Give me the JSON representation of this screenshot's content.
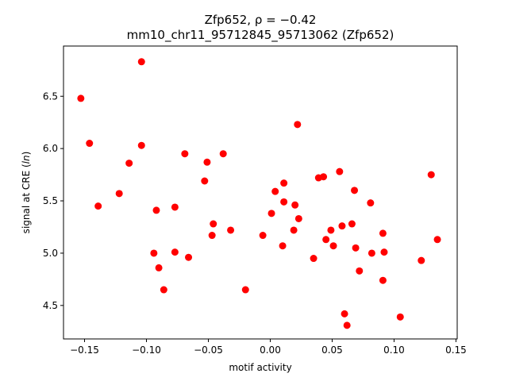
{
  "chart_data": {
    "type": "scatter",
    "title_line1": "Zfp652, ρ = −0.42",
    "title_line2": "mm10_chr11_95712845_95713062 (Zfp652)",
    "xlabel": "motif activity",
    "ylabel": "signal at CRE (ln)",
    "xlim": [
      -0.167,
      0.151
    ],
    "ylim": [
      4.18,
      6.98
    ],
    "xticks": [
      -0.15,
      -0.1,
      -0.05,
      0.0,
      0.05,
      0.1,
      0.15
    ],
    "xtick_labels": [
      "−0.15",
      "−0.10",
      "−0.05",
      "0.00",
      "0.05",
      "0.10",
      "0.15"
    ],
    "yticks": [
      4.5,
      5.0,
      5.5,
      6.0,
      6.5
    ],
    "ytick_labels": [
      "4.5",
      "5.0",
      "5.5",
      "6.0",
      "6.5"
    ],
    "marker_color": "#ff0000",
    "grid": false,
    "points": [
      {
        "x": -0.153,
        "y": 6.48
      },
      {
        "x": -0.146,
        "y": 6.05
      },
      {
        "x": -0.139,
        "y": 5.45
      },
      {
        "x": -0.122,
        "y": 5.57
      },
      {
        "x": -0.114,
        "y": 5.86
      },
      {
        "x": -0.104,
        "y": 6.83
      },
      {
        "x": -0.104,
        "y": 6.03
      },
      {
        "x": -0.094,
        "y": 5.0
      },
      {
        "x": -0.092,
        "y": 5.41
      },
      {
        "x": -0.09,
        "y": 4.86
      },
      {
        "x": -0.086,
        "y": 4.65
      },
      {
        "x": -0.077,
        "y": 5.44
      },
      {
        "x": -0.077,
        "y": 5.01
      },
      {
        "x": -0.069,
        "y": 5.95
      },
      {
        "x": -0.066,
        "y": 4.96
      },
      {
        "x": -0.053,
        "y": 5.69
      },
      {
        "x": -0.051,
        "y": 5.87
      },
      {
        "x": -0.047,
        "y": 5.17
      },
      {
        "x": -0.046,
        "y": 5.28
      },
      {
        "x": -0.038,
        "y": 5.95
      },
      {
        "x": -0.032,
        "y": 5.22
      },
      {
        "x": -0.02,
        "y": 4.65
      },
      {
        "x": -0.006,
        "y": 5.17
      },
      {
        "x": 0.001,
        "y": 5.38
      },
      {
        "x": 0.004,
        "y": 5.59
      },
      {
        "x": 0.01,
        "y": 5.07
      },
      {
        "x": 0.011,
        "y": 5.49
      },
      {
        "x": 0.011,
        "y": 5.67
      },
      {
        "x": 0.019,
        "y": 5.22
      },
      {
        "x": 0.02,
        "y": 5.46
      },
      {
        "x": 0.022,
        "y": 6.23
      },
      {
        "x": 0.023,
        "y": 5.33
      },
      {
        "x": 0.035,
        "y": 4.95
      },
      {
        "x": 0.039,
        "y": 5.72
      },
      {
        "x": 0.043,
        "y": 5.73
      },
      {
        "x": 0.045,
        "y": 5.13
      },
      {
        "x": 0.049,
        "y": 5.22
      },
      {
        "x": 0.051,
        "y": 5.07
      },
      {
        "x": 0.056,
        "y": 5.78
      },
      {
        "x": 0.058,
        "y": 5.26
      },
      {
        "x": 0.06,
        "y": 4.42
      },
      {
        "x": 0.062,
        "y": 4.31
      },
      {
        "x": 0.066,
        "y": 5.28
      },
      {
        "x": 0.068,
        "y": 5.6
      },
      {
        "x": 0.069,
        "y": 5.05
      },
      {
        "x": 0.072,
        "y": 4.83
      },
      {
        "x": 0.081,
        "y": 5.48
      },
      {
        "x": 0.082,
        "y": 5.0
      },
      {
        "x": 0.091,
        "y": 5.19
      },
      {
        "x": 0.091,
        "y": 4.74
      },
      {
        "x": 0.092,
        "y": 5.01
      },
      {
        "x": 0.105,
        "y": 4.39
      },
      {
        "x": 0.122,
        "y": 4.93
      },
      {
        "x": 0.13,
        "y": 5.75
      },
      {
        "x": 0.135,
        "y": 5.13
      }
    ]
  }
}
